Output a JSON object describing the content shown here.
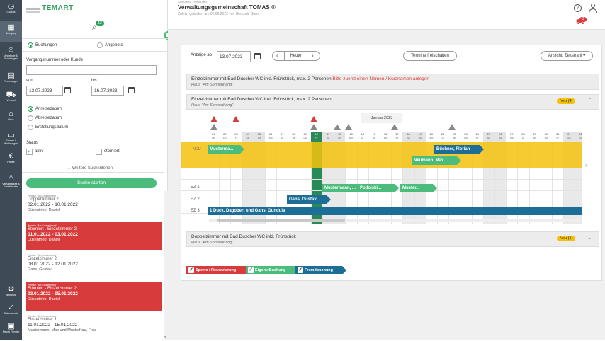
{
  "nav": [
    {
      "icon": "◷",
      "label": "Cockpit"
    },
    {
      "icon": "▦",
      "label": "Belegung"
    },
    {
      "icon": "⌾",
      "label": "Angebote & Buchungen"
    },
    {
      "icon": "▤",
      "label": "Rechnungen"
    },
    {
      "icon": "⛟",
      "label": "Verkauf"
    },
    {
      "icon": "⌂",
      "label": "Haus"
    },
    {
      "icon": "▭",
      "label": "Zimmer & Wohnungen"
    },
    {
      "icon": "€",
      "label": "Preise"
    },
    {
      "icon": "⚠",
      "label": "Verfügbarkeit & Kontaktdaten"
    },
    {
      "icon": "⚙",
      "label": "Webshop"
    },
    {
      "icon": "✓",
      "label": "Datenschutz"
    },
    {
      "icon": "▣",
      "label": "Neues Fenster"
    }
  ],
  "header": {
    "logo": "TEMART",
    "search_badge": "12",
    "breadcrumb": "Startseite › Kalender",
    "title": "Verwaltungsgemeinschaft TOMAS ®",
    "subtitle": "Zuletzt geändert am 02.06.2022 von Gertrude Gans",
    "help_icon": "?",
    "user_icon": "person",
    "cart_count": "3"
  },
  "search": {
    "tab_bookings": "Buchungen",
    "tab_offers": "Angebote",
    "booking_label": "Vorgangsnummer oder Kunde",
    "booking_value": "",
    "from_label": "von",
    "from_value": "13.07.2023",
    "to_label": "bis",
    "to_value": "16.07.2023",
    "date_options": [
      "Anreisedatum",
      "Abreisedatum",
      "Erstellungsdatum"
    ],
    "status_label": "Status",
    "status_active": "aktiv",
    "status_cancelled": "storniert",
    "more_criteria": "Weitere Suchkriterien",
    "start_button": "Suche starten"
  },
  "results": [
    {
      "house": "Pension \"Am Sonnenhang\"",
      "room": "Doppelzimmer 2",
      "dates": "02.01.2022 - 10.01.2022",
      "guest": "Düsentrieb, Daniel",
      "cancelled": false
    },
    {
      "house": "Pension \"Am Sonnenhang\"",
      "room": "Storniert - Einzelzimmer 2",
      "dates": "01.01.2022 - 03.01.2022",
      "guest": "Düsentrieb, Daniel",
      "cancelled": true
    },
    {
      "house": "Pension \"Am Sonnenhang\"",
      "room": "Einzelzimmer 2",
      "dates": "08.01.2022 - 12.01.2022",
      "guest": "Gans, Gustav",
      "cancelled": false
    },
    {
      "house": "Pension \"Am Sonnenhang\"",
      "room": "Storniert - Einzelzimmer 2",
      "dates": "03.01.2022 - 05.01.2022",
      "guest": "Düsentrieb, Daniel",
      "cancelled": true
    },
    {
      "house": "Pension \"Am Sonnenhang\"",
      "room": "Einzelzimmer 1",
      "dates": "11.01.2022 - 15.01.2022",
      "guest": "Mustermann, Max und Musterfrau, Frea",
      "cancelled": false
    }
  ],
  "toolbar": {
    "show_from_label": "Anzeige ab",
    "show_from_value": "13.07.2023",
    "today_label": "Heute",
    "release_label": "Termine freischalten",
    "view_label": "Ansicht: Zeitstrahl"
  },
  "sections": [
    {
      "title": "Einzelzimmer mit Bad Dusche/ WC inkl. Frühstück, max. 2 Personen",
      "warning": "Bitte zuerst einen Namen / Kurznamen anlegen",
      "house": "Haus \"Am Sonnenhang\""
    },
    {
      "title": "Einzelzimmer mit Bad Dusche/ WC inkl. Frühstück, max. 2 Personen",
      "house": "Haus \"Am Sonnenhang\"",
      "badge": "Neu (4)"
    },
    {
      "title": "Doppelzimmer mit Bad Dusche/ WC inkl. Frühstück",
      "house": "Haus \"Am Sonnenhang\"",
      "badge": "Neu (1)"
    }
  ],
  "calendar": {
    "month": "Januar 2023",
    "days": [
      {
        "d": "01",
        "w": "Mi"
      },
      {
        "d": "02",
        "w": "Do"
      },
      {
        "d": "03",
        "w": "Fr"
      },
      {
        "d": "04",
        "w": "Sa"
      },
      {
        "d": "05",
        "w": "So"
      },
      {
        "d": "06",
        "w": "Mo"
      },
      {
        "d": "07",
        "w": "Di"
      },
      {
        "d": "08",
        "w": "Mi"
      },
      {
        "d": "09",
        "w": "Do"
      },
      {
        "d": "10",
        "w": "Fr"
      },
      {
        "d": "11",
        "w": "Sa"
      },
      {
        "d": "12",
        "w": "So"
      },
      {
        "d": "13",
        "w": "Mo"
      },
      {
        "d": "14",
        "w": "Di"
      },
      {
        "d": "15",
        "w": "Mi"
      },
      {
        "d": "16",
        "w": "Do"
      },
      {
        "d": "17",
        "w": "Fr"
      },
      {
        "d": "18",
        "w": "Sa"
      },
      {
        "d": "19",
        "w": "So"
      },
      {
        "d": "20",
        "w": "Mo"
      },
      {
        "d": "21",
        "w": "Di"
      },
      {
        "d": "22",
        "w": "Mi"
      },
      {
        "d": "23",
        "w": "Do"
      },
      {
        "d": "24",
        "w": "Fr"
      },
      {
        "d": "25",
        "w": "Sa"
      },
      {
        "d": "26",
        "w": "So"
      },
      {
        "d": "27",
        "w": "Mo"
      },
      {
        "d": "28",
        "w": "Di"
      },
      {
        "d": "29",
        "w": "Mi"
      },
      {
        "d": "30",
        "w": "Do"
      },
      {
        "d": "31",
        "w": "Fr"
      },
      {
        "d": "01",
        "w": "Sa"
      },
      {
        "d": "02",
        "w": "So"
      }
    ],
    "rows": [
      "NEU",
      "EZ 1",
      "EZ 2",
      "EZ 3"
    ],
    "bookings": [
      {
        "label": "Musterma...",
        "color": "#4cbc7d"
      },
      {
        "label": "Büchner, Florian",
        "color": "#1d6e96"
      },
      {
        "label": "Neumann, Max",
        "color": "#4cbc7d"
      },
      {
        "label": "Mustermann, ...",
        "color": "#4cbc7d"
      },
      {
        "label": "Podolski...",
        "color": "#4cbc7d"
      },
      {
        "label": "Muster...",
        "color": "#4cbc7d"
      },
      {
        "label": "Gans, Gustav",
        "color": "#1d6e96"
      },
      {
        "label": "1 Duck, Dagobert und Gans, Gundula",
        "color": "#1d6e96"
      }
    ]
  },
  "legend": [
    "Sperre / Reservierung",
    "Eigene Buchung",
    "Fremdbuchung"
  ],
  "colors": {
    "green": "#4cbc7d",
    "blue": "#1d6e96",
    "red": "#d83b3b",
    "yellow": "#f4c20d"
  }
}
